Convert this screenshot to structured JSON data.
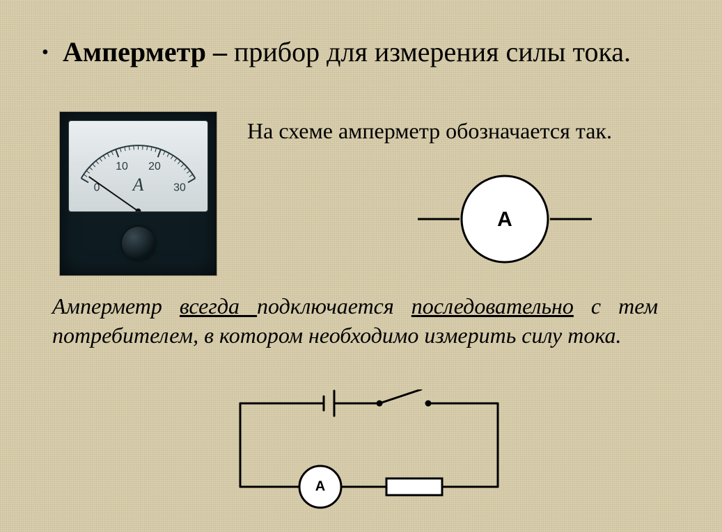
{
  "title": {
    "bold": "Амперметр – ",
    "rest": "прибор для измерения силы тока."
  },
  "symbol_caption": "На схеме амперметр обозначается так.",
  "symbol": {
    "letter": "А",
    "circle_color": "#ffffff",
    "stroke": "#000000",
    "stroke_width": 3,
    "letter_fontsize": 30,
    "letter_weight": "700"
  },
  "rule": {
    "w1": "Амперметр ",
    "u1": "всегда ",
    "w2": "подключается ",
    "u2": "последовательно",
    "w3": " с тем потребителем, в котором необходимо измерить силу тока."
  },
  "circuit": {
    "stroke": "#000000",
    "stroke_width": 3,
    "background": "#ffffff",
    "ammeter_letter": "A",
    "ammeter_fontsize": 20,
    "ammeter_weight": "700"
  },
  "meter_photo": {
    "body_color": "#0e1c22",
    "face_color": "#e9eef0",
    "unit": "A",
    "scale_labels": [
      "0",
      "10",
      "20",
      "30"
    ],
    "needle_angle_deg": -55,
    "label_fontsize": 16,
    "unit_fontsize": 26,
    "tick_color": "#2a3a40"
  },
  "colors": {
    "page_bg": "#d9cfae",
    "text": "#000000"
  }
}
